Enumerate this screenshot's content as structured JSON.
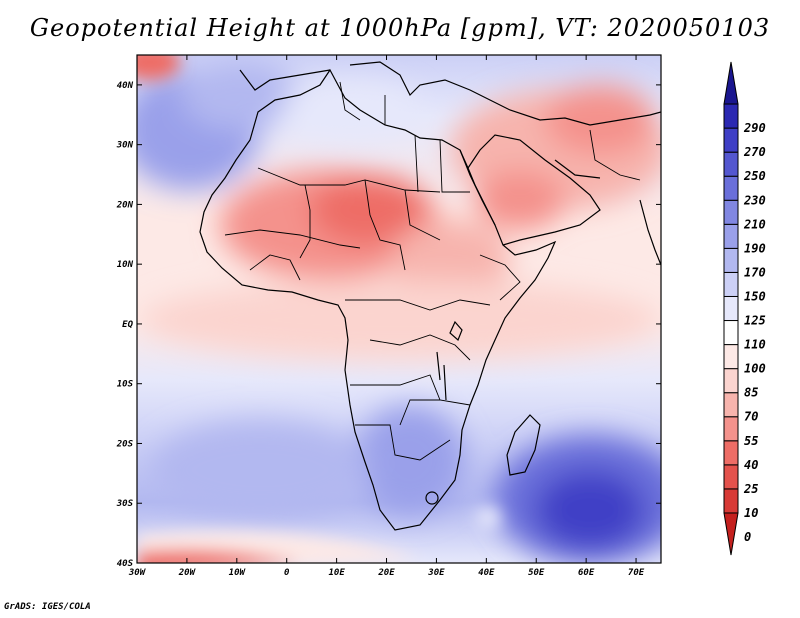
{
  "title": "Geopotential Height at 1000hPa [gpm], VT: 2020050103",
  "credit": "GrADS: IGES/COLA",
  "map": {
    "lon_range": [
      -30,
      75
    ],
    "lat_range": [
      -40,
      45
    ],
    "lat_ticks": [
      "40N",
      "30N",
      "20N",
      "10N",
      "EQ",
      "10S",
      "20S",
      "30S",
      "40S"
    ],
    "lon_ticks": [
      "30W",
      "20W",
      "10W",
      "0",
      "10E",
      "20E",
      "30E",
      "40E",
      "50E",
      "60E",
      "70E"
    ]
  },
  "colorbar": {
    "levels": [
      "0",
      "10",
      "25",
      "40",
      "55",
      "70",
      "85",
      "100",
      "110",
      "125",
      "150",
      "170",
      "190",
      "210",
      "230",
      "250",
      "270",
      "290"
    ],
    "colors": [
      "#c4201e",
      "#d83a36",
      "#e4524c",
      "#ee6d66",
      "#f4928c",
      "#f7b4ad",
      "#fbd4cf",
      "#fde9e6",
      "#ffffff",
      "#e6e8fb",
      "#ccd0f6",
      "#b2b8f0",
      "#9aa0ea",
      "#8187e2",
      "#6a6fda",
      "#5457d0",
      "#3f3fc6",
      "#2b28b2",
      "#1a168f"
    ]
  }
}
